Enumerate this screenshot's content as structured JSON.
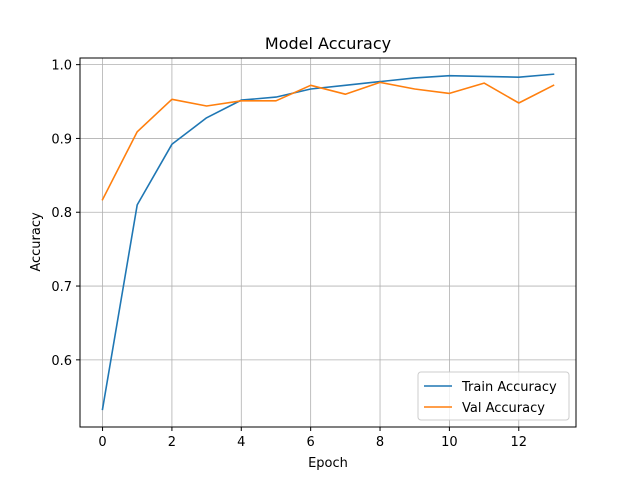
{
  "chart_data": {
    "type": "line",
    "title": "Model Accuracy",
    "xlabel": "Epoch",
    "ylabel": "Accuracy",
    "x": [
      0,
      1,
      2,
      3,
      4,
      5,
      6,
      7,
      8,
      9,
      10,
      11,
      12,
      13
    ],
    "xlim": [
      -0.65,
      13.65
    ],
    "ylim": [
      0.509,
      1.009
    ],
    "xticks": [
      0,
      2,
      4,
      6,
      8,
      10,
      12
    ],
    "xtick_labels": [
      "0",
      "2",
      "4",
      "6",
      "8",
      "10",
      "12"
    ],
    "yticks": [
      0.6,
      0.7,
      0.8,
      0.9,
      1.0
    ],
    "ytick_labels": [
      "0.6",
      "0.7",
      "0.8",
      "0.9",
      "1.0"
    ],
    "grid": true,
    "legend_position": "lower-right",
    "series": [
      {
        "name": "Train Accuracy",
        "color": "#1f77b4",
        "values": [
          0.533,
          0.81,
          0.892,
          0.928,
          0.952,
          0.956,
          0.967,
          0.972,
          0.977,
          0.982,
          0.985,
          0.984,
          0.983,
          0.987
        ]
      },
      {
        "name": "Val Accuracy",
        "color": "#ff7f0e",
        "values": [
          0.817,
          0.909,
          0.953,
          0.944,
          0.951,
          0.951,
          0.972,
          0.96,
          0.976,
          0.967,
          0.961,
          0.975,
          0.948,
          0.972
        ]
      }
    ]
  }
}
